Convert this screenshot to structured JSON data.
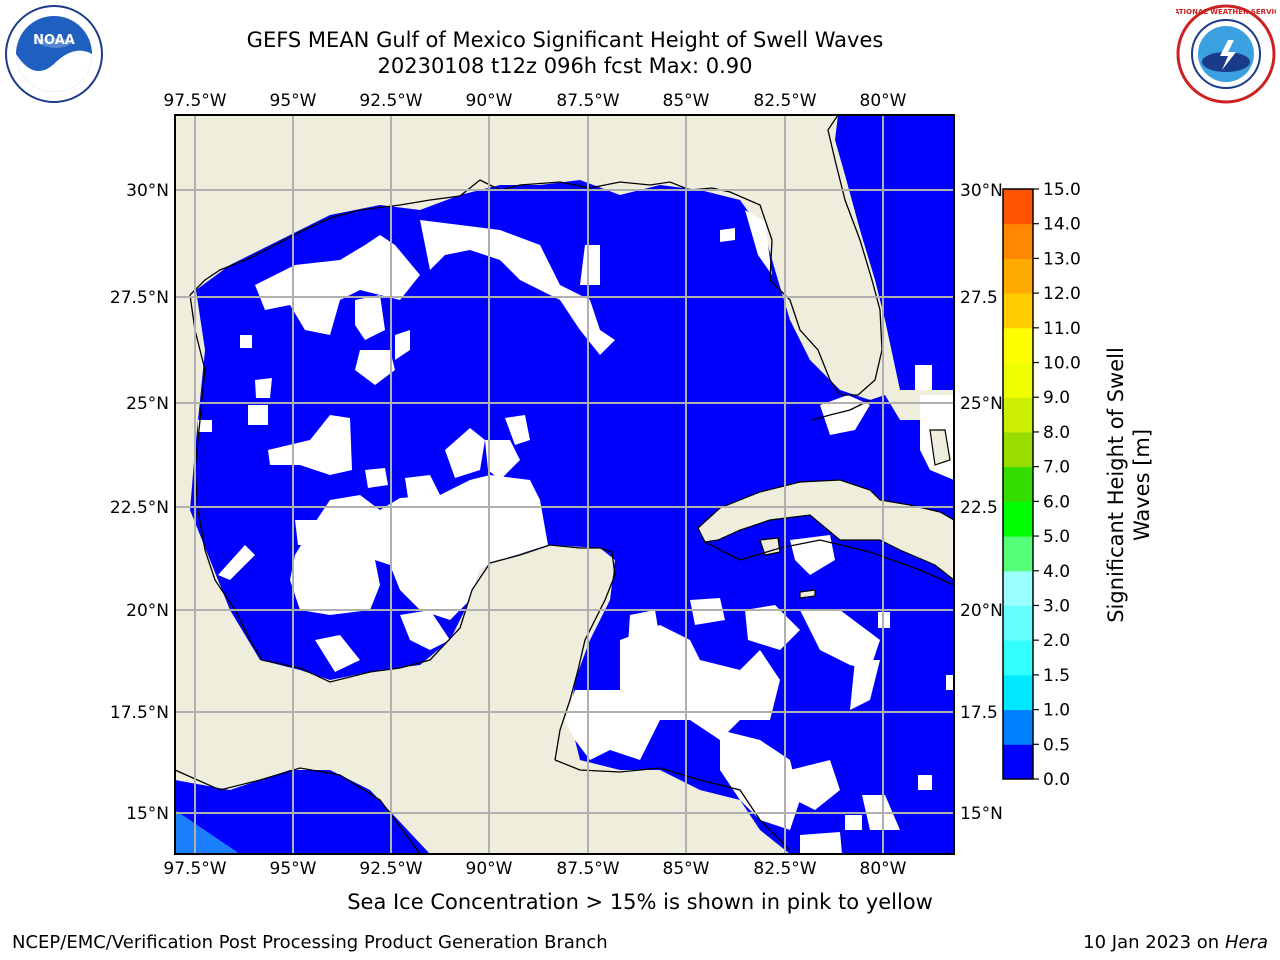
{
  "title": {
    "line1": "GEFS MEAN Gulf of Mexico Significant Height of Swell Waves",
    "line2": "20230108 t12z 096h fcst   Max: 0.90"
  },
  "map": {
    "lon_labels": [
      "97.5°W",
      "95°W",
      "92.5°W",
      "90°W",
      "87.5°W",
      "85°W",
      "82.5°W",
      "80°W"
    ],
    "lat_labels": [
      "30°N",
      "27.5°N",
      "25°N",
      "22.5°N",
      "20°N",
      "17.5°N",
      "15°N"
    ],
    "lat_labels_right": [
      "30°N",
      "27.5",
      "25°N",
      "22.5",
      "20°N",
      "17.5",
      "15°N"
    ],
    "colors": {
      "land": "#efeedd",
      "ocean_field": "#0000ff",
      "gap": "#ffffff",
      "grid": "#b0b0b0",
      "deep_corner": "#1a7fff"
    }
  },
  "colorbar": {
    "label_line1": "Significant Height of Swell",
    "label_line2": "Waves [m]",
    "ticks": [
      "0.0",
      "0.5",
      "1.0",
      "1.5",
      "2.0",
      "3.0",
      "4.0",
      "5.0",
      "6.0",
      "7.0",
      "8.0",
      "9.0",
      "10.0",
      "11.0",
      "12.0",
      "13.0",
      "14.0",
      "15.0"
    ],
    "colors": [
      "#0000ff",
      "#0080ff",
      "#00e8ff",
      "#33ffff",
      "#66ffff",
      "#99ffff",
      "#55ff77",
      "#00ff00",
      "#33dd00",
      "#99dd00",
      "#ccee00",
      "#eeff00",
      "#ffff00",
      "#ffcc00",
      "#ffaa00",
      "#ff8800",
      "#ff5500",
      "#ff2200",
      "#ff0000"
    ]
  },
  "logos": {
    "noaa_text": "NOAA",
    "nws_text": "NATIONAL WEATHER SERVICE"
  },
  "notes": {
    "ice": "Sea Ice Concentration > 15% is shown in pink to yellow",
    "footer_left": "NCEP/EMC/Verification Post Processing Product Generation Branch",
    "footer_date": "10 Jan 2023 on ",
    "footer_host": "Hera"
  }
}
